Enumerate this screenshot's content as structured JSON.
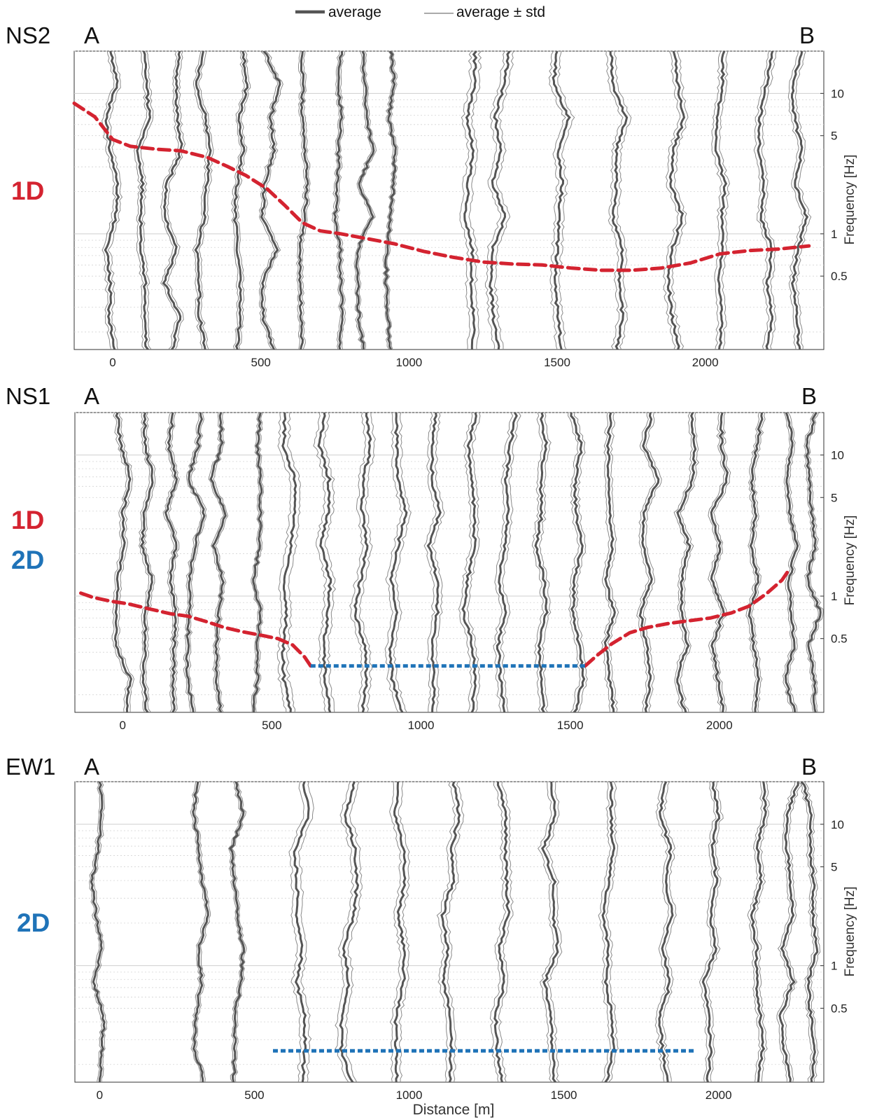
{
  "legend": {
    "average": "average",
    "average_std": "average ± std"
  },
  "colors": {
    "average": "#555555",
    "std": "#8a8a8a",
    "oneD": "#d42330",
    "twoD": "#1f73b8"
  },
  "chart_data": [
    {
      "type": "line",
      "profile": "NS2",
      "endpoint_left": "A",
      "endpoint_right": "B",
      "classification": [
        {
          "label": "1D",
          "color": "#d42330"
        }
      ],
      "xlabel": "",
      "ylabel": "Frequency [Hz]",
      "xlim": [
        -130,
        2400
      ],
      "ylim": [
        0.15,
        20
      ],
      "yscale": "log",
      "xticks": [
        0,
        500,
        1000,
        1500,
        2000
      ],
      "yticks": [
        0.5,
        1,
        5,
        10
      ],
      "station_x": [
        0,
        100,
        200,
        300,
        420,
        530,
        640,
        760,
        850,
        930,
        1200,
        1300,
        1500,
        1700,
        1900,
        2050,
        2200,
        2320
      ],
      "fundamental_1D": {
        "x": [
          -130,
          -60,
          0,
          60,
          150,
          230,
          320,
          390,
          450,
          520,
          580,
          640,
          700,
          770,
          850,
          950,
          1050,
          1150,
          1250,
          1350,
          1450,
          1550,
          1650,
          1750,
          1850,
          1950,
          2050,
          2150,
          2250,
          2350
        ],
        "y": [
          8.5,
          6.8,
          4.7,
          4.2,
          4.0,
          3.9,
          3.5,
          3.0,
          2.6,
          2.1,
          1.6,
          1.2,
          1.05,
          1.0,
          0.93,
          0.85,
          0.75,
          0.68,
          0.63,
          0.61,
          0.6,
          0.57,
          0.55,
          0.55,
          0.57,
          0.62,
          0.72,
          0.76,
          0.78,
          0.82
        ]
      },
      "fundamental_2D": null
    },
    {
      "type": "line",
      "profile": "NS1",
      "endpoint_left": "A",
      "endpoint_right": "B",
      "classification": [
        {
          "label": "1D",
          "color": "#d42330"
        },
        {
          "label": "2D",
          "color": "#1f73b8"
        }
      ],
      "xlabel": "",
      "ylabel": "Frequency [Hz]",
      "xlim": [
        -160,
        2350
      ],
      "ylim": [
        0.15,
        20
      ],
      "yscale": "log",
      "xticks": [
        0,
        500,
        1000,
        1500,
        2000
      ],
      "yticks": [
        0.5,
        1,
        5,
        10
      ],
      "station_x": [
        0,
        80,
        160,
        240,
        320,
        440,
        560,
        680,
        800,
        920,
        1040,
        1160,
        1280,
        1400,
        1520,
        1640,
        1760,
        1880,
        2000,
        2120,
        2240,
        2320
      ],
      "fundamental_1D": [
        {
          "x": [
            -140,
            -100,
            -40,
            20,
            80,
            160,
            220,
            280,
            340,
            400,
            460,
            520,
            570,
            610,
            630
          ],
          "y": [
            1.05,
            0.98,
            0.92,
            0.88,
            0.82,
            0.75,
            0.72,
            0.66,
            0.6,
            0.56,
            0.53,
            0.5,
            0.45,
            0.37,
            0.32
          ]
        },
        {
          "x": [
            1550,
            1590,
            1640,
            1700,
            1760,
            1830,
            1900,
            1970,
            2040,
            2100,
            2160,
            2210,
            2230
          ],
          "y": [
            0.32,
            0.38,
            0.46,
            0.55,
            0.6,
            0.64,
            0.67,
            0.7,
            0.76,
            0.85,
            1.05,
            1.3,
            1.5
          ]
        }
      ],
      "fundamental_2D": {
        "x": [
          630,
          1550
        ],
        "y": [
          0.32,
          0.32
        ]
      }
    },
    {
      "type": "line",
      "profile": "EW1",
      "endpoint_left": "A",
      "endpoint_right": "B",
      "classification": [
        {
          "label": "2D",
          "color": "#1f73b8"
        }
      ],
      "xlabel": "Distance [m]",
      "ylabel": "Frequency [Hz]",
      "xlim": [
        -80,
        2340
      ],
      "ylim": [
        0.15,
        20
      ],
      "yscale": "log",
      "xticks": [
        0,
        500,
        1000,
        1500,
        2000
      ],
      "yticks": [
        0.5,
        1,
        5,
        10
      ],
      "station_x": [
        0,
        330,
        440,
        650,
        800,
        960,
        1120,
        1300,
        1460,
        1640,
        1830,
        1970,
        2120,
        2220,
        2300
      ],
      "fundamental_1D": null,
      "fundamental_2D": {
        "x": [
          560,
          1920
        ],
        "y": [
          0.25,
          0.25
        ]
      }
    }
  ]
}
